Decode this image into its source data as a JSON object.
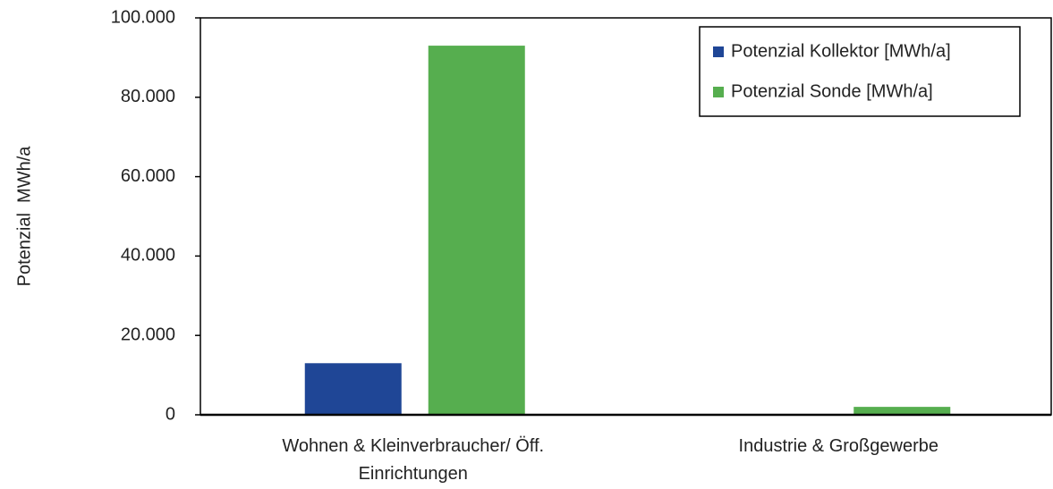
{
  "chart_data": {
    "type": "bar",
    "y_label": "Potenzial  MWh/a",
    "categories": [
      "Wohnen & Kleinverbraucher/ Öff. Einrichtungen",
      "Industrie & Großgewerbe"
    ],
    "series": [
      {
        "name": "Potenzial Kollektor [MWh/a]",
        "color": "#1f4696",
        "values": [
          13000,
          0
        ]
      },
      {
        "name": "Potenzial Sonde [MWh/a]",
        "color": "#56ae4f",
        "values": [
          93000,
          2000
        ]
      }
    ],
    "ylim": [
      0,
      100000
    ],
    "yticks": [
      0,
      {
        "value": 20000,
        "label": "20.000"
      },
      {
        "value": 40000,
        "label": "40.000"
      },
      {
        "value": 60000,
        "label": "60.000"
      },
      {
        "value": 80000,
        "label": "80.000"
      },
      {
        "value": 100000,
        "label": "100.000"
      }
    ],
    "legend": "upper right"
  }
}
